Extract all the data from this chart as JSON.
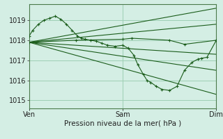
{
  "bg_color": "#d4eee4",
  "grid_color": "#9ecfb4",
  "line_color": "#1a5c1a",
  "xlabel": "Pression niveau de la mer( hPa )",
  "xtick_labels": [
    "Ven",
    "Sam",
    "Dim"
  ],
  "xtick_positions": [
    0.0,
    0.5,
    1.0
  ],
  "ylim": [
    1014.6,
    1019.8
  ],
  "yticks": [
    1015,
    1016,
    1017,
    1018,
    1019
  ],
  "xlabel_fontsize": 7.5,
  "tick_fontsize": 7,
  "series": [
    {
      "x": [
        0.0,
        0.02,
        0.05,
        0.08,
        0.11,
        0.14,
        0.17,
        0.2,
        0.23,
        0.26,
        0.28,
        0.3,
        0.33,
        0.36,
        0.39,
        0.42,
        0.46,
        0.5,
        0.53,
        0.56,
        0.58,
        0.61,
        0.63,
        0.65,
        0.68,
        0.71,
        0.75,
        0.79,
        0.83,
        0.87,
        0.9,
        0.92,
        0.95,
        1.0
      ],
      "y": [
        1018.2,
        1018.5,
        1018.8,
        1019.0,
        1019.1,
        1019.2,
        1019.05,
        1018.8,
        1018.5,
        1018.2,
        1018.1,
        1018.05,
        1018.0,
        1017.95,
        1017.85,
        1017.75,
        1017.7,
        1017.75,
        1017.6,
        1017.25,
        1016.8,
        1016.3,
        1016.0,
        1015.9,
        1015.7,
        1015.55,
        1015.5,
        1015.7,
        1016.5,
        1016.9,
        1017.05,
        1017.1,
        1017.15,
        1018.0
      ],
      "marker": "+"
    },
    {
      "x": [
        0.0,
        1.0
      ],
      "y": [
        1017.9,
        1019.6
      ],
      "marker": null
    },
    {
      "x": [
        0.0,
        1.0
      ],
      "y": [
        1017.9,
        1018.8
      ],
      "marker": null
    },
    {
      "x": [
        0.0,
        0.25,
        0.5,
        0.55,
        0.75,
        0.83,
        1.0
      ],
      "y": [
        1017.9,
        1018.0,
        1018.05,
        1018.1,
        1018.0,
        1017.8,
        1018.0
      ],
      "marker": "+"
    },
    {
      "x": [
        0.0,
        1.0
      ],
      "y": [
        1017.9,
        1017.3
      ],
      "marker": null
    },
    {
      "x": [
        0.0,
        1.0
      ],
      "y": [
        1017.9,
        1016.5
      ],
      "marker": null
    },
    {
      "x": [
        0.0,
        1.0
      ],
      "y": [
        1017.9,
        1015.3
      ],
      "marker": null
    }
  ]
}
